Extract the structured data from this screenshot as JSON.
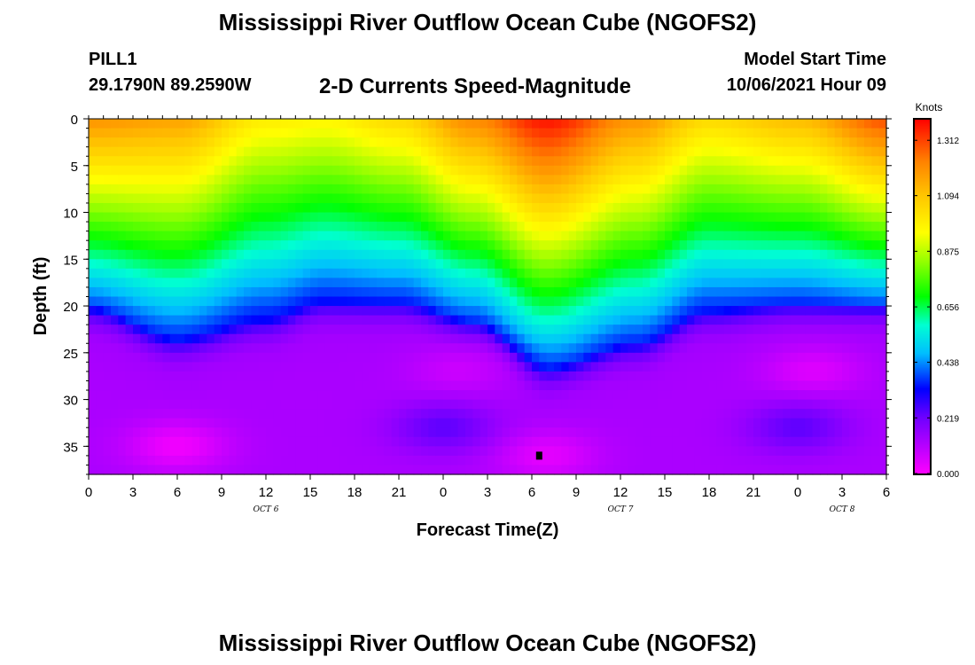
{
  "header": {
    "title": "Mississippi River Outflow Ocean Cube (NGOFS2)",
    "station_id": "PILL1",
    "station_coords": "29.1790N  89.2590W",
    "subtitle": "2-D Currents Speed-Magnitude",
    "model_start_label": "Model Start Time",
    "model_start_value": "10/06/2021 Hour 09"
  },
  "footer": {
    "title": "Mississippi River Outflow Ocean Cube (NGOFS2)"
  },
  "chart_data": {
    "type": "heatmap",
    "title": "2-D Currents Speed-Magnitude",
    "xlabel": "Forecast Time(Z)",
    "ylabel": "Depth (ft)",
    "x_tick_labels": [
      "0",
      "3",
      "6",
      "9",
      "12",
      "15",
      "18",
      "21",
      "0",
      "3",
      "6",
      "9",
      "12",
      "15",
      "18",
      "21",
      "0",
      "3",
      "6"
    ],
    "x_range_hours": [
      0,
      54
    ],
    "date_labels": [
      {
        "label": "OCT 6",
        "hour": 12
      },
      {
        "label": "OCT 7",
        "hour": 36
      },
      {
        "label": "OCT 8",
        "hour": 51
      }
    ],
    "y_ticks": [
      0,
      5,
      10,
      15,
      20,
      25,
      30,
      35
    ],
    "ylim": [
      0,
      38
    ],
    "y_inverted": true,
    "colorbar": {
      "label": "Knots",
      "ticks": [
        "1.312",
        "1.094",
        "0.875",
        "0.656",
        "0.438",
        "0.219",
        "0.000"
      ],
      "range": [
        0.0,
        1.4
      ]
    },
    "marker": {
      "hour": 30.5,
      "depth_ft": 36
    },
    "surface_speed_profile": {
      "hours": [
        0,
        6,
        12,
        16,
        21,
        26,
        31,
        37,
        42,
        48,
        54
      ],
      "knots": [
        1.2,
        1.17,
        1.0,
        0.98,
        1.05,
        1.22,
        1.38,
        1.2,
        1.05,
        1.12,
        1.3
      ]
    },
    "mixed_layer_boundary_ft": {
      "hours": [
        0,
        6,
        12,
        16,
        21,
        26,
        31,
        37,
        42,
        48,
        54
      ],
      "depth": [
        20.0,
        23.5,
        21.5,
        19.5,
        19.5,
        21.5,
        26.5,
        24.0,
        20.5,
        19.5,
        19.5
      ]
    },
    "minimum_speed_cells": [
      {
        "hour": 6,
        "depth_ft": 35,
        "knots": 0.02
      },
      {
        "hour": 25,
        "depth_ft": 27,
        "knots": 0.08
      },
      {
        "hour": 31,
        "depth_ft": 36,
        "knots": 0.04
      },
      {
        "hour": 49,
        "depth_ft": 27,
        "knots": 0.05
      },
      {
        "hour": 48,
        "depth_ft": 33,
        "knots": 0.24
      },
      {
        "hour": 24,
        "depth_ft": 33,
        "knots": 0.24
      }
    ]
  }
}
